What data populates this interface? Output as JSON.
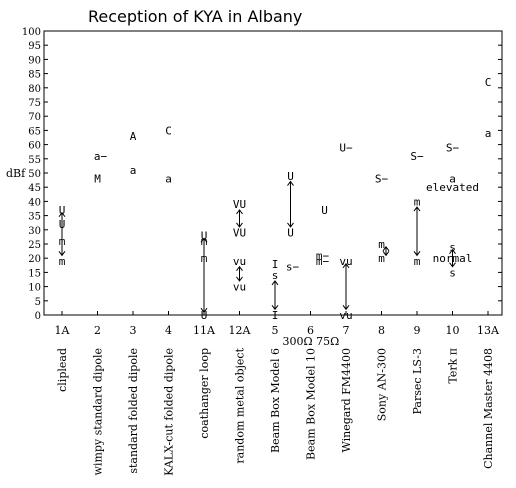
{
  "chart_data": {
    "type": "scatter",
    "title": "Reception of KYA in Albany",
    "ylabel": "dBf",
    "ylim": [
      0,
      100
    ],
    "yticks": [
      0,
      5,
      10,
      15,
      20,
      25,
      30,
      35,
      40,
      45,
      50,
      55,
      60,
      65,
      70,
      75,
      80,
      85,
      90,
      95,
      100
    ],
    "grid": false,
    "legend": "none",
    "categories": [
      {
        "tick": "1A",
        "name": "cliplead"
      },
      {
        "tick": "2",
        "name": "wimpy standard dipole"
      },
      {
        "tick": "3",
        "name": "standard folded dipole"
      },
      {
        "tick": "4",
        "name": "KALX-cut folded dipole"
      },
      {
        "tick": "11A",
        "name": "coathanger loop"
      },
      {
        "tick": "12A",
        "name": "random metal object"
      },
      {
        "tick": "5",
        "name": "Beam Box Model 6"
      },
      {
        "tick": "6",
        "name": "Beam Box Model 10"
      },
      {
        "tick": "7",
        "name": "Winegard FM4400"
      },
      {
        "tick": "8",
        "name": "Sony AN-300"
      },
      {
        "tick": "9",
        "name": "Parsec LS-3"
      },
      {
        "tick": "10",
        "name": "Terk π"
      },
      {
        "tick": "13A",
        "name": "Channel Master 4408"
      }
    ],
    "sublabels": [
      {
        "cat": 7,
        "text": "300Ω 75Ω"
      }
    ],
    "points": [
      {
        "cat": 0,
        "dx": 0,
        "y": 37,
        "label": "U"
      },
      {
        "cat": 0,
        "dx": 0,
        "y": 32,
        "label": "U"
      },
      {
        "cat": 0,
        "dx": 0,
        "y": 26,
        "label": "m"
      },
      {
        "cat": 0,
        "dx": 0,
        "y": 19,
        "label": "m"
      },
      {
        "cat": 1,
        "dx": 3,
        "y": 56,
        "label": "a−"
      },
      {
        "cat": 1,
        "dx": 0,
        "y": 48,
        "label": "M"
      },
      {
        "cat": 2,
        "dx": 0,
        "y": 63,
        "label": "A"
      },
      {
        "cat": 2,
        "dx": 0,
        "y": 51,
        "label": "a"
      },
      {
        "cat": 3,
        "dx": 0,
        "y": 65,
        "label": "C"
      },
      {
        "cat": 3,
        "dx": 0,
        "y": 48,
        "label": "a"
      },
      {
        "cat": 4,
        "dx": 0,
        "y": 28,
        "label": "U"
      },
      {
        "cat": 4,
        "dx": 0,
        "y": 26,
        "label": "m"
      },
      {
        "cat": 4,
        "dx": 0,
        "y": 20,
        "label": "m"
      },
      {
        "cat": 4,
        "dx": 0,
        "y": 0,
        "label": "U"
      },
      {
        "cat": 5,
        "dx": 0,
        "y": 39,
        "label": "VU"
      },
      {
        "cat": 5,
        "dx": 0,
        "y": 29,
        "label": "VU"
      },
      {
        "cat": 5,
        "dx": 0,
        "y": 19,
        "label": "vu"
      },
      {
        "cat": 5,
        "dx": 0,
        "y": 10,
        "label": "vu"
      },
      {
        "cat": 6,
        "dx": 0,
        "y": 18,
        "label": "I"
      },
      {
        "cat": 6,
        "dx": 0,
        "y": 14,
        "label": "s"
      },
      {
        "cat": 6,
        "dx": 0,
        "y": 0,
        "label": "I"
      },
      {
        "cat": 7,
        "dx": -18,
        "y": 17,
        "label": "s−"
      },
      {
        "cat": 7,
        "dx": -20,
        "y": 49,
        "label": "U"
      },
      {
        "cat": 7,
        "dx": -20,
        "y": 29,
        "label": "U"
      },
      {
        "cat": 7,
        "dx": 14,
        "y": 37,
        "label": "U"
      },
      {
        "cat": 7,
        "dx": 12,
        "y": 21,
        "label": "m−"
      },
      {
        "cat": 7,
        "dx": 12,
        "y": 19,
        "label": "m−"
      },
      {
        "cat": 8,
        "dx": 0,
        "y": 59,
        "label": "U−"
      },
      {
        "cat": 8,
        "dx": 0,
        "y": 19,
        "label": "vu"
      },
      {
        "cat": 8,
        "dx": 0,
        "y": 0,
        "label": "vu"
      },
      {
        "cat": 9,
        "dx": 0,
        "y": 48,
        "label": "S−"
      },
      {
        "cat": 9,
        "dx": 0,
        "y": 25,
        "label": "m"
      },
      {
        "cat": 9,
        "dx": 0,
        "y": 20,
        "label": "m"
      },
      {
        "cat": 10,
        "dx": 0,
        "y": 56,
        "label": "S−"
      },
      {
        "cat": 10,
        "dx": 0,
        "y": 40,
        "label": "m"
      },
      {
        "cat": 10,
        "dx": 0,
        "y": 19,
        "label": "m"
      },
      {
        "cat": 11,
        "dx": 0,
        "y": 59,
        "label": "S−"
      },
      {
        "cat": 11,
        "dx": 0,
        "y": 48,
        "label": "a"
      },
      {
        "cat": 11,
        "dx": 0,
        "y": 24,
        "label": "s"
      },
      {
        "cat": 11,
        "dx": 0,
        "y": 15,
        "label": "s"
      },
      {
        "cat": 12,
        "dx": 0,
        "y": 82,
        "label": "C"
      },
      {
        "cat": 12,
        "dx": 0,
        "y": 64,
        "label": "a"
      }
    ],
    "ranges": [
      {
        "cat": 0,
        "dx": 0,
        "y1": 36,
        "y2": 21
      },
      {
        "cat": 4,
        "dx": 0,
        "y1": 27,
        "y2": 1
      },
      {
        "cat": 5,
        "dx": 0,
        "y1": 37,
        "y2": 31
      },
      {
        "cat": 5,
        "dx": 0,
        "y1": 17,
        "y2": 12
      },
      {
        "cat": 6,
        "dx": 0,
        "y1": 12,
        "y2": 2
      },
      {
        "cat": 7,
        "dx": -20,
        "y1": 47,
        "y2": 31
      },
      {
        "cat": 8,
        "dx": 0,
        "y1": 18,
        "y2": 2
      },
      {
        "cat": 8,
        "dx": 40,
        "y1": 24,
        "y2": 21
      },
      {
        "cat": 10,
        "dx": 0,
        "y1": 38,
        "y2": 21
      },
      {
        "cat": 11,
        "dx": 0,
        "y1": 23,
        "y2": 17
      }
    ],
    "annotations": [
      {
        "cat": 11,
        "y": 45,
        "text": "elevated"
      },
      {
        "cat": 11,
        "y": 20,
        "text": "normal"
      }
    ]
  }
}
